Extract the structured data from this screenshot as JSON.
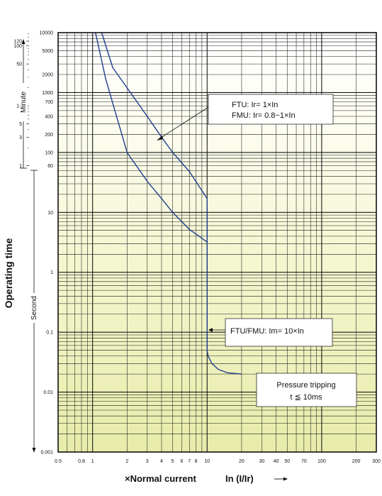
{
  "chart_data": {
    "type": "line",
    "x_scale": "log",
    "y_scale": "log",
    "xlim": [
      0.5,
      300
    ],
    "ylim": [
      0.001,
      10000
    ],
    "grid": true,
    "xlabel": "×Normal current",
    "xlabel_suffix": "In (I/Ir)",
    "ylabel": "Operating time",
    "ylabel_second": "Second",
    "ylabel_minute": "Minute",
    "x_ticks": [
      {
        "v": 0.5,
        "label": "0.5"
      },
      {
        "v": 0.8,
        "label": "0.8"
      },
      {
        "v": 1,
        "label": "1"
      },
      {
        "v": 2,
        "label": "2"
      },
      {
        "v": 3,
        "label": "3"
      },
      {
        "v": 4,
        "label": "4"
      },
      {
        "v": 5,
        "label": "5"
      },
      {
        "v": 6,
        "label": "6"
      },
      {
        "v": 7,
        "label": "7"
      },
      {
        "v": 8,
        "label": "8"
      },
      {
        "v": 10,
        "label": "10"
      },
      {
        "v": 20,
        "label": "20"
      },
      {
        "v": 30,
        "label": "30"
      },
      {
        "v": 40,
        "label": "40"
      },
      {
        "v": 50,
        "label": "50"
      },
      {
        "v": 70,
        "label": "70"
      },
      {
        "v": 100,
        "label": "100"
      },
      {
        "v": 200,
        "label": "200"
      },
      {
        "v": 300,
        "label": "300"
      }
    ],
    "y_ticks": [
      {
        "v": 0.001,
        "label": "0.001"
      },
      {
        "v": 0.01,
        "label": "0.01"
      },
      {
        "v": 0.1,
        "label": "0.1"
      },
      {
        "v": 1,
        "label": "1"
      },
      {
        "v": 10,
        "label": "10"
      },
      {
        "v": 60,
        "label": "60"
      },
      {
        "v": 100,
        "label": "100"
      },
      {
        "v": 200,
        "label": "200"
      },
      {
        "v": 400,
        "label": "400"
      },
      {
        "v": 700,
        "label": "700"
      },
      {
        "v": 1000,
        "label": "1000"
      },
      {
        "v": 2000,
        "label": "2000"
      },
      {
        "v": 5000,
        "label": "5000"
      },
      {
        "v": 10000,
        "label": "10000"
      }
    ],
    "minute_ticks": [
      {
        "v": 1,
        "label": "1"
      },
      {
        "v": 3,
        "label": "3"
      },
      {
        "v": 5,
        "label": "5"
      },
      {
        "v": 7,
        "label": "7"
      },
      {
        "v": 10,
        "label": "10"
      },
      {
        "v": 50,
        "label": "50"
      },
      {
        "v": 100,
        "label": "100"
      },
      {
        "v": 120,
        "label": "120"
      }
    ],
    "series": [
      {
        "points": [
          [
            1.2,
            10000
          ],
          [
            1.5,
            2600
          ],
          [
            2,
            1200
          ],
          [
            3,
            400
          ],
          [
            4,
            180
          ],
          [
            5,
            100
          ],
          [
            7,
            48
          ],
          [
            10,
            17
          ]
        ]
      },
      {
        "points": [
          [
            1.06,
            10000
          ],
          [
            1.3,
            1700
          ],
          [
            2,
            100
          ],
          [
            3,
            33
          ],
          [
            4,
            17
          ],
          [
            5,
            10
          ],
          [
            7,
            5.2
          ],
          [
            10,
            3.2
          ]
        ]
      },
      {
        "points": [
          [
            10,
            17
          ],
          [
            10,
            0.05
          ],
          [
            10.2,
            0.04
          ],
          [
            11,
            0.03
          ],
          [
            12.5,
            0.024
          ],
          [
            15,
            0.021
          ],
          [
            20,
            0.02
          ]
        ]
      }
    ],
    "annotations": [
      {
        "lines": [
          "FTU: Ir= 1×In",
          "FMU: Ir= 0.8~1×In"
        ]
      },
      {
        "lines": [
          "FTU/FMU: Im= 10×In"
        ]
      },
      {
        "lines": [
          "Pressure tripping",
          "t ≦ 10ms"
        ]
      }
    ]
  }
}
